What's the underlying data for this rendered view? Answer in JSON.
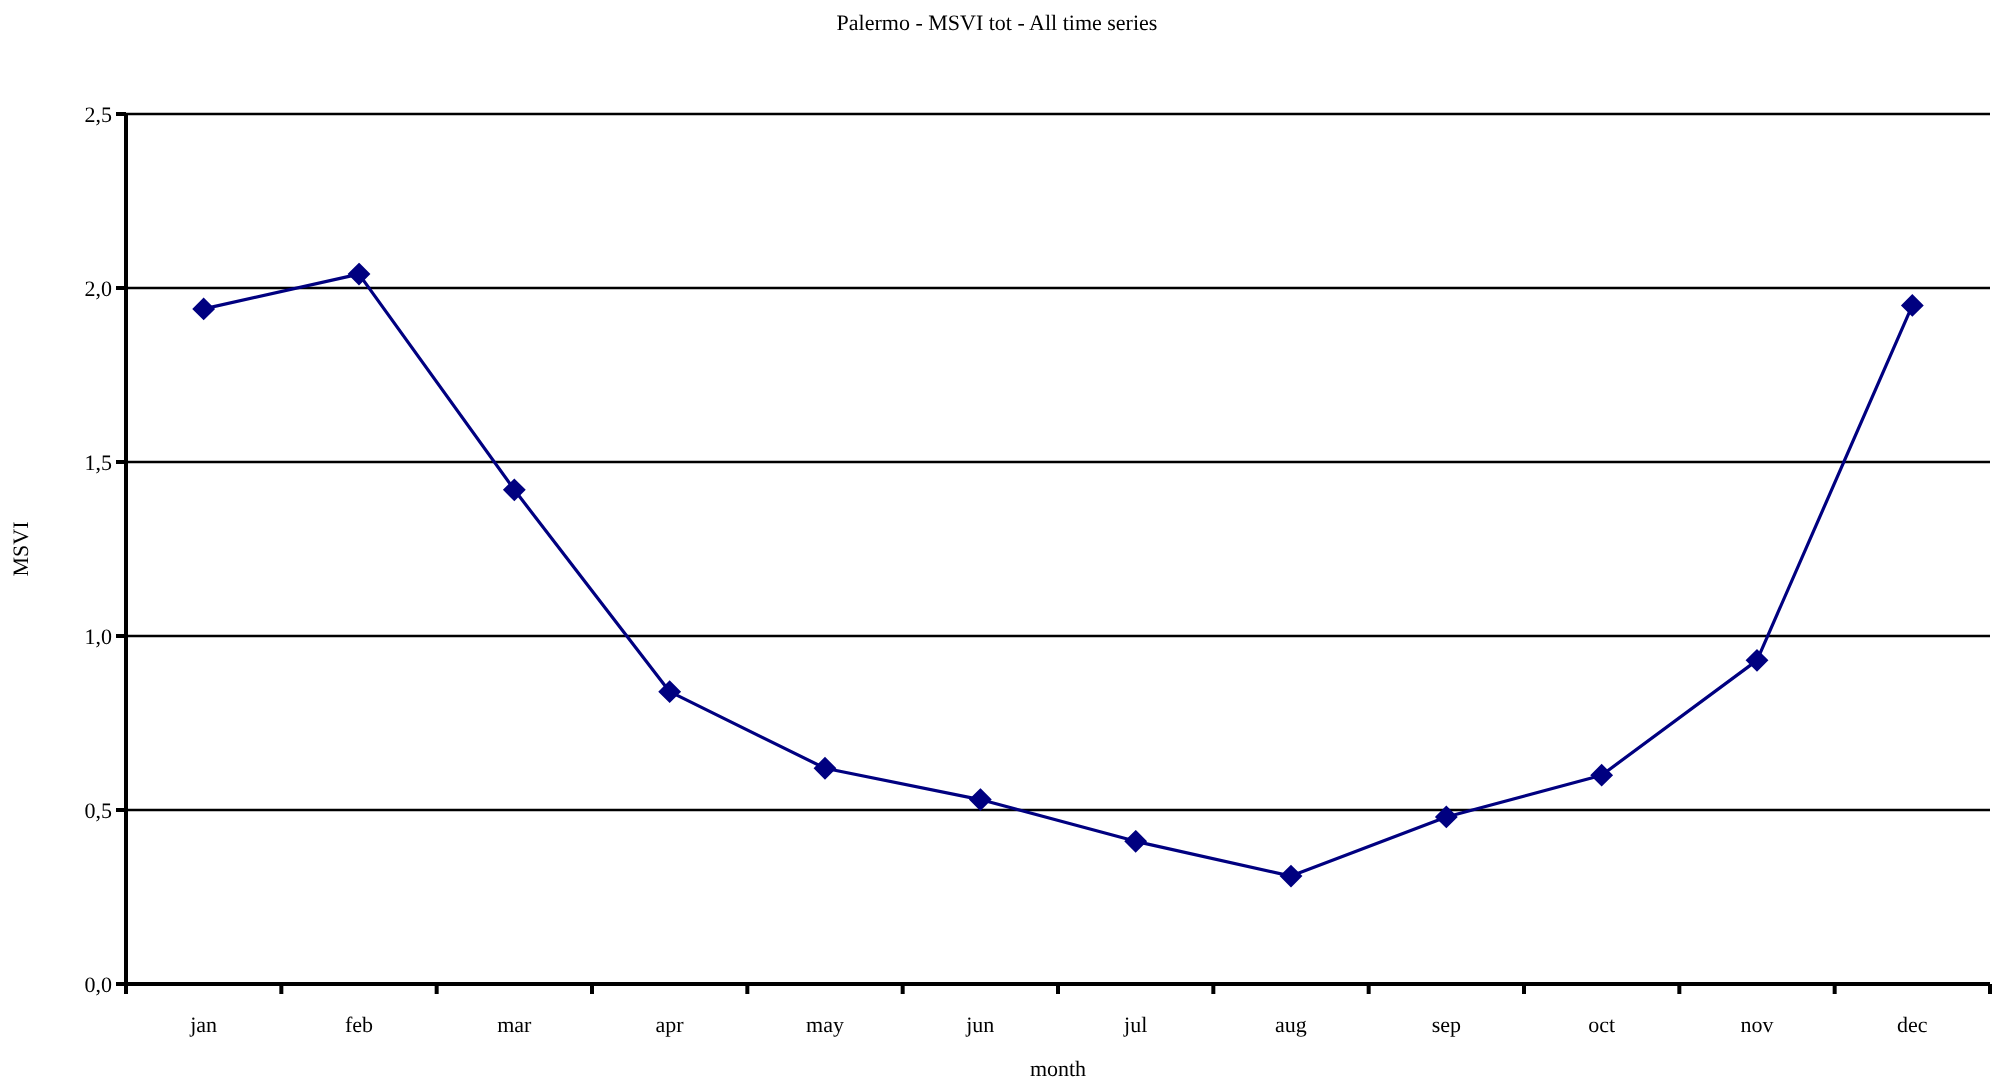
{
  "chart_data": {
    "type": "line",
    "title": "Palermo - MSVI tot - All time series",
    "xlabel": "month",
    "ylabel": "MSVI",
    "categories": [
      "jan",
      "feb",
      "mar",
      "apr",
      "may",
      "jun",
      "jul",
      "aug",
      "sep",
      "oct",
      "nov",
      "dec"
    ],
    "values": [
      1.94,
      2.04,
      1.42,
      0.84,
      0.62,
      0.53,
      0.41,
      0.31,
      0.48,
      0.6,
      0.93,
      1.95
    ],
    "color": "#000080",
    "ylim": [
      0,
      2.5
    ],
    "yticks": [
      {
        "value": 0,
        "label": "0,0"
      },
      {
        "value": 0.5,
        "label": "0,5"
      },
      {
        "value": 1,
        "label": "1,0"
      },
      {
        "value": 1.5,
        "label": "1,5"
      },
      {
        "value": 2,
        "label": "2,0"
      },
      {
        "value": 2.5,
        "label": "2,5"
      }
    ],
    "grid": "y",
    "marker": "diamond",
    "line_style": "solid"
  }
}
